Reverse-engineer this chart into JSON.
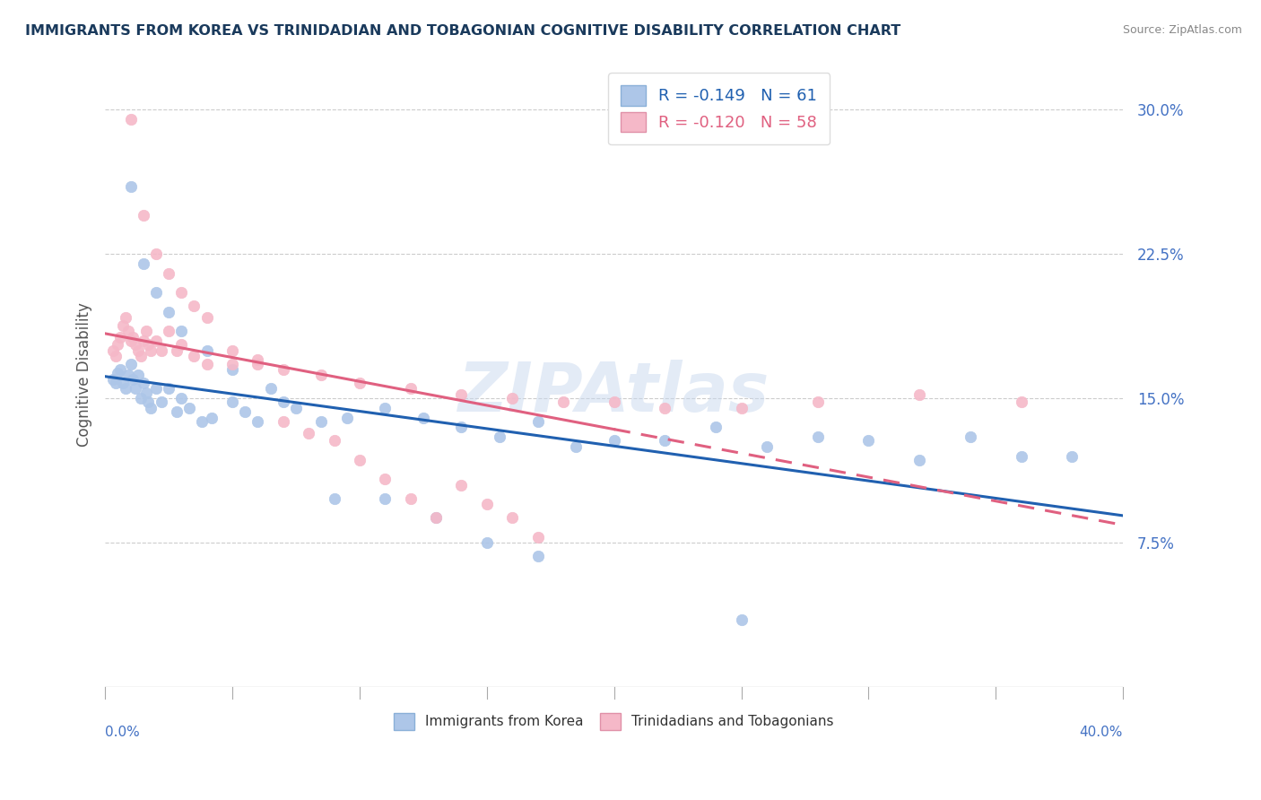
{
  "title": "IMMIGRANTS FROM KOREA VS TRINIDADIAN AND TOBAGONIAN COGNITIVE DISABILITY CORRELATION CHART",
  "source": "Source: ZipAtlas.com",
  "ylabel": "Cognitive Disability",
  "legend_labels": [
    "Immigrants from Korea",
    "Trinidadians and Tobagonians"
  ],
  "korea_R": -0.149,
  "korea_N": 61,
  "trinidad_R": -0.12,
  "trinidad_N": 58,
  "korea_color": "#adc6e8",
  "trinidad_color": "#f5b8c8",
  "korea_line_color": "#2060b0",
  "trinidad_line_color": "#e06080",
  "xlim": [
    0.0,
    0.4
  ],
  "ylim": [
    0.0,
    0.325
  ],
  "yticks": [
    0.075,
    0.15,
    0.225,
    0.3
  ],
  "ytick_labels": [
    "7.5%",
    "15.0%",
    "22.5%",
    "30.0%"
  ],
  "korea_x": [
    0.003,
    0.004,
    0.005,
    0.006,
    0.007,
    0.008,
    0.009,
    0.01,
    0.011,
    0.012,
    0.013,
    0.014,
    0.015,
    0.016,
    0.017,
    0.018,
    0.02,
    0.022,
    0.025,
    0.028,
    0.03,
    0.033,
    0.038,
    0.042,
    0.05,
    0.055,
    0.06,
    0.065,
    0.075,
    0.085,
    0.095,
    0.11,
    0.125,
    0.14,
    0.155,
    0.17,
    0.185,
    0.2,
    0.22,
    0.24,
    0.26,
    0.28,
    0.3,
    0.32,
    0.34,
    0.36,
    0.38,
    0.01,
    0.015,
    0.02,
    0.025,
    0.03,
    0.04,
    0.05,
    0.07,
    0.09,
    0.11,
    0.13,
    0.15,
    0.17,
    0.25
  ],
  "korea_y": [
    0.16,
    0.158,
    0.163,
    0.165,
    0.158,
    0.155,
    0.162,
    0.168,
    0.16,
    0.155,
    0.162,
    0.15,
    0.158,
    0.153,
    0.148,
    0.145,
    0.155,
    0.148,
    0.155,
    0.143,
    0.15,
    0.145,
    0.138,
    0.14,
    0.148,
    0.143,
    0.138,
    0.155,
    0.145,
    0.138,
    0.14,
    0.145,
    0.14,
    0.135,
    0.13,
    0.138,
    0.125,
    0.128,
    0.128,
    0.135,
    0.125,
    0.13,
    0.128,
    0.118,
    0.13,
    0.12,
    0.12,
    0.26,
    0.22,
    0.205,
    0.195,
    0.185,
    0.175,
    0.165,
    0.148,
    0.098,
    0.098,
    0.088,
    0.075,
    0.068,
    0.035
  ],
  "trinidad_x": [
    0.003,
    0.004,
    0.005,
    0.006,
    0.007,
    0.008,
    0.009,
    0.01,
    0.011,
    0.012,
    0.013,
    0.014,
    0.015,
    0.016,
    0.017,
    0.018,
    0.02,
    0.022,
    0.025,
    0.028,
    0.03,
    0.035,
    0.04,
    0.05,
    0.06,
    0.07,
    0.085,
    0.1,
    0.12,
    0.14,
    0.16,
    0.18,
    0.2,
    0.22,
    0.25,
    0.28,
    0.32,
    0.36,
    0.01,
    0.015,
    0.02,
    0.025,
    0.03,
    0.035,
    0.04,
    0.05,
    0.06,
    0.07,
    0.08,
    0.09,
    0.1,
    0.11,
    0.12,
    0.13,
    0.14,
    0.15,
    0.16,
    0.17
  ],
  "trinidad_y": [
    0.175,
    0.172,
    0.178,
    0.182,
    0.188,
    0.192,
    0.185,
    0.18,
    0.182,
    0.178,
    0.175,
    0.172,
    0.18,
    0.185,
    0.178,
    0.175,
    0.18,
    0.175,
    0.185,
    0.175,
    0.178,
    0.172,
    0.168,
    0.168,
    0.17,
    0.165,
    0.162,
    0.158,
    0.155,
    0.152,
    0.15,
    0.148,
    0.148,
    0.145,
    0.145,
    0.148,
    0.152,
    0.148,
    0.295,
    0.245,
    0.225,
    0.215,
    0.205,
    0.198,
    0.192,
    0.175,
    0.168,
    0.138,
    0.132,
    0.128,
    0.118,
    0.108,
    0.098,
    0.088,
    0.105,
    0.095,
    0.088,
    0.078
  ]
}
